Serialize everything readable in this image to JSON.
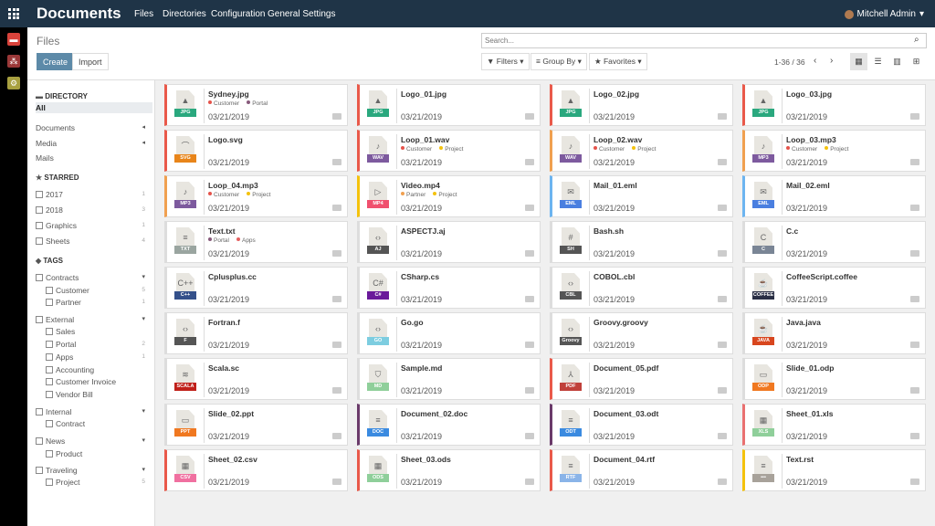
{
  "topbar": {
    "app": "Documents",
    "menus": [
      "Files",
      "Directories",
      "Configuration",
      "General Settings"
    ],
    "user": "Mitchell Admin"
  },
  "control": {
    "breadcrumb": "Files",
    "create": "Create",
    "import": "Import",
    "search_placeholder": "Search...",
    "filters": "Filters",
    "group_by": "Group By",
    "favorites": "Favorites",
    "pager": "1-36 / 36",
    "views": [
      "kanban",
      "list",
      "graph",
      "pivot"
    ],
    "active_view": "kanban"
  },
  "sidebar": [
    {
      "type": "h",
      "label": "DIRECTORY",
      "icon": "folder-icon"
    },
    {
      "type": "dir",
      "label": "All",
      "selected": true
    },
    {
      "type": "dir",
      "label": "Documents",
      "arrow": "◂"
    },
    {
      "type": "dir",
      "label": "Media",
      "arrow": "◂"
    },
    {
      "type": "dir",
      "label": "Mails"
    },
    {
      "type": "h",
      "label": "STARRED",
      "icon": "star-icon"
    },
    {
      "type": "cb",
      "label": "2017",
      "count": "1"
    },
    {
      "type": "cb",
      "label": "2018",
      "count": "3"
    },
    {
      "type": "cb",
      "label": "Graphics",
      "count": "1"
    },
    {
      "type": "cb",
      "label": "Sheets",
      "count": "4"
    },
    {
      "type": "h",
      "label": "TAGS",
      "icon": "tag-icon"
    },
    {
      "type": "cb",
      "label": "Contracts",
      "arrow": "▾"
    },
    {
      "type": "sub",
      "label": "Customer",
      "count": "5"
    },
    {
      "type": "sub",
      "label": "Partner",
      "count": "1"
    },
    {
      "type": "cb",
      "label": "External",
      "arrow": "▾"
    },
    {
      "type": "sub",
      "label": "Sales"
    },
    {
      "type": "sub",
      "label": "Portal",
      "count": "2"
    },
    {
      "type": "sub",
      "label": "Apps",
      "count": "1"
    },
    {
      "type": "sub",
      "label": "Accounting"
    },
    {
      "type": "sub",
      "label": "Customer Invoice"
    },
    {
      "type": "sub",
      "label": "Vendor Bill"
    },
    {
      "type": "cb",
      "label": "Internal",
      "arrow": "▾"
    },
    {
      "type": "sub",
      "label": "Contract"
    },
    {
      "type": "cb",
      "label": "News",
      "arrow": "▾"
    },
    {
      "type": "sub",
      "label": "Product"
    },
    {
      "type": "cb",
      "label": "Traveling",
      "arrow": "▾"
    },
    {
      "type": "sub",
      "label": "Project",
      "count": "5"
    }
  ],
  "tag_colors": {
    "Customer": "#e5534b",
    "Portal": "#875a7b",
    "Project": "#f4c20d",
    "Partner": "#f0a050",
    "Apps": "#e56060"
  },
  "files": [
    {
      "name": "Sydney.jpg",
      "ext": "JPG",
      "badge": "#2aa87e",
      "border": "#e9594a",
      "glyph": "▲",
      "tags": [
        "Customer",
        "Portal"
      ],
      "date": "03/21/2019"
    },
    {
      "name": "Logo_01.jpg",
      "ext": "JPG",
      "badge": "#2aa87e",
      "border": "#e9594a",
      "glyph": "▲",
      "tags": [],
      "date": "03/21/2019"
    },
    {
      "name": "Logo_02.jpg",
      "ext": "JPG",
      "badge": "#2aa87e",
      "border": "#e9594a",
      "glyph": "▲",
      "tags": [],
      "date": "03/21/2019"
    },
    {
      "name": "Logo_03.jpg",
      "ext": "JPG",
      "badge": "#2aa87e",
      "border": "#e9594a",
      "glyph": "▲",
      "tags": [],
      "date": "03/21/2019"
    },
    {
      "name": "Logo.svg",
      "ext": "SVG",
      "badge": "#e8851a",
      "border": "#e9594a",
      "glyph": "⌒",
      "tags": [],
      "date": "03/21/2019"
    },
    {
      "name": "Loop_01.wav",
      "ext": "WAV",
      "badge": "#7d5a9e",
      "border": "#e9594a",
      "glyph": "♪",
      "tags": [
        "Customer",
        "Project"
      ],
      "date": "03/21/2019"
    },
    {
      "name": "Loop_02.wav",
      "ext": "WAV",
      "badge": "#7d5a9e",
      "border": "#f0a050",
      "glyph": "♪",
      "tags": [
        "Customer",
        "Project"
      ],
      "date": "03/21/2019"
    },
    {
      "name": "Loop_03.mp3",
      "ext": "MP3",
      "badge": "#7d5a9e",
      "border": "#f0a050",
      "glyph": "♪",
      "tags": [
        "Customer",
        "Project"
      ],
      "date": "03/21/2019"
    },
    {
      "name": "Loop_04.mp3",
      "ext": "MP3",
      "badge": "#7d5a9e",
      "border": "#f0a050",
      "glyph": "♪",
      "tags": [
        "Customer",
        "Project"
      ],
      "date": "03/21/2019"
    },
    {
      "name": "Video.mp4",
      "ext": "MP4",
      "badge": "#f0506e",
      "border": "#f4c20d",
      "glyph": "▷",
      "tags": [
        "Partner",
        "Project"
      ],
      "date": "03/21/2019"
    },
    {
      "name": "Mail_01.eml",
      "ext": "EML",
      "badge": "#4a7fe0",
      "border": "#6cb4f0",
      "glyph": "✉",
      "tags": [],
      "date": "03/21/2019"
    },
    {
      "name": "Mail_02.eml",
      "ext": "EML",
      "badge": "#4a7fe0",
      "border": "#6cb4f0",
      "glyph": "✉",
      "tags": [],
      "date": "03/21/2019"
    },
    {
      "name": "Text.txt",
      "ext": "TXT",
      "badge": "#9aa5a0",
      "border": "",
      "glyph": "≡",
      "tags": [
        "Portal",
        "Apps"
      ],
      "date": "03/21/2019"
    },
    {
      "name": "ASPECTJ.aj",
      "ext": "AJ",
      "badge": "#555555",
      "border": "",
      "glyph": "‹›",
      "tags": [],
      "date": "03/21/2019"
    },
    {
      "name": "Bash.sh",
      "ext": "SH",
      "badge": "#555555",
      "border": "",
      "glyph": "#",
      "tags": [],
      "date": "03/21/2019"
    },
    {
      "name": "C.c",
      "ext": "C",
      "badge": "#7a8595",
      "border": "",
      "glyph": "C",
      "tags": [],
      "date": "03/21/2019"
    },
    {
      "name": "Cplusplus.cc",
      "ext": "C++",
      "badge": "#34508a",
      "border": "",
      "glyph": "C++",
      "tags": [],
      "date": "03/21/2019"
    },
    {
      "name": "CSharp.cs",
      "ext": "C#",
      "badge": "#6a1a9a",
      "border": "",
      "glyph": "C#",
      "tags": [],
      "date": "03/21/2019"
    },
    {
      "name": "COBOL.cbl",
      "ext": "CBL",
      "badge": "#555555",
      "border": "",
      "glyph": "‹›",
      "tags": [],
      "date": "03/21/2019"
    },
    {
      "name": "CoffeeScript.coffee",
      "ext": "COFFEE",
      "badge": "#2a2f45",
      "border": "",
      "glyph": "☕",
      "tags": [],
      "date": "03/21/2019"
    },
    {
      "name": "Fortran.f",
      "ext": "F",
      "badge": "#555555",
      "border": "",
      "glyph": "‹›",
      "tags": [],
      "date": "03/21/2019"
    },
    {
      "name": "Go.go",
      "ext": "GO",
      "badge": "#7dcde0",
      "border": "",
      "glyph": "‹›",
      "tags": [],
      "date": "03/21/2019"
    },
    {
      "name": "Groovy.groovy",
      "ext": "Groovy",
      "badge": "#555555",
      "border": "",
      "glyph": "‹›",
      "tags": [],
      "date": "03/21/2019"
    },
    {
      "name": "Java.java",
      "ext": "JAVA",
      "badge": "#d8461e",
      "border": "",
      "glyph": "☕",
      "tags": [],
      "date": "03/21/2019"
    },
    {
      "name": "Scala.sc",
      "ext": "SCALA",
      "badge": "#c0201a",
      "border": "",
      "glyph": "≋",
      "tags": [],
      "date": "03/21/2019"
    },
    {
      "name": "Sample.md",
      "ext": "MD",
      "badge": "#8fcf9a",
      "border": "",
      "glyph": "⛉",
      "tags": [],
      "date": "03/21/2019"
    },
    {
      "name": "Document_05.pdf",
      "ext": "PDF",
      "badge": "#c0403a",
      "border": "#e9594a",
      "glyph": "⅄",
      "tags": [],
      "date": "03/21/2019"
    },
    {
      "name": "Slide_01.odp",
      "ext": "ODP",
      "badge": "#f07820",
      "border": "",
      "glyph": "▭",
      "tags": [],
      "date": "03/21/2019"
    },
    {
      "name": "Slide_02.ppt",
      "ext": "PPT",
      "badge": "#f07820",
      "border": "",
      "glyph": "▭",
      "tags": [],
      "date": "03/21/2019"
    },
    {
      "name": "Document_02.doc",
      "ext": "DOC",
      "badge": "#3a8ae0",
      "border": "#6a3a6a",
      "glyph": "≡",
      "tags": [],
      "date": "03/21/2019"
    },
    {
      "name": "Document_03.odt",
      "ext": "ODT",
      "badge": "#3a8ae0",
      "border": "#6a3a6a",
      "glyph": "≡",
      "tags": [],
      "date": "03/21/2019"
    },
    {
      "name": "Sheet_01.xls",
      "ext": "XLS",
      "badge": "#8fcf9a",
      "border": "#e97070",
      "glyph": "▦",
      "tags": [],
      "date": "03/21/2019"
    },
    {
      "name": "Sheet_02.csv",
      "ext": "CSV",
      "badge": "#f070a0",
      "border": "#e9594a",
      "glyph": "▦",
      "tags": [],
      "date": "03/21/2019"
    },
    {
      "name": "Sheet_03.ods",
      "ext": "ODS",
      "badge": "#8fcf9a",
      "border": "#e9594a",
      "glyph": "▦",
      "tags": [],
      "date": "03/21/2019"
    },
    {
      "name": "Document_04.rtf",
      "ext": "RTF",
      "badge": "#8ab4e8",
      "border": "#e9594a",
      "glyph": "≡",
      "tags": [],
      "date": "03/21/2019"
    },
    {
      "name": "Text.rst",
      "ext": "•••",
      "badge": "#a8a29a",
      "border": "#f4c20d",
      "glyph": "≡",
      "tags": [],
      "date": "03/21/2019"
    }
  ]
}
